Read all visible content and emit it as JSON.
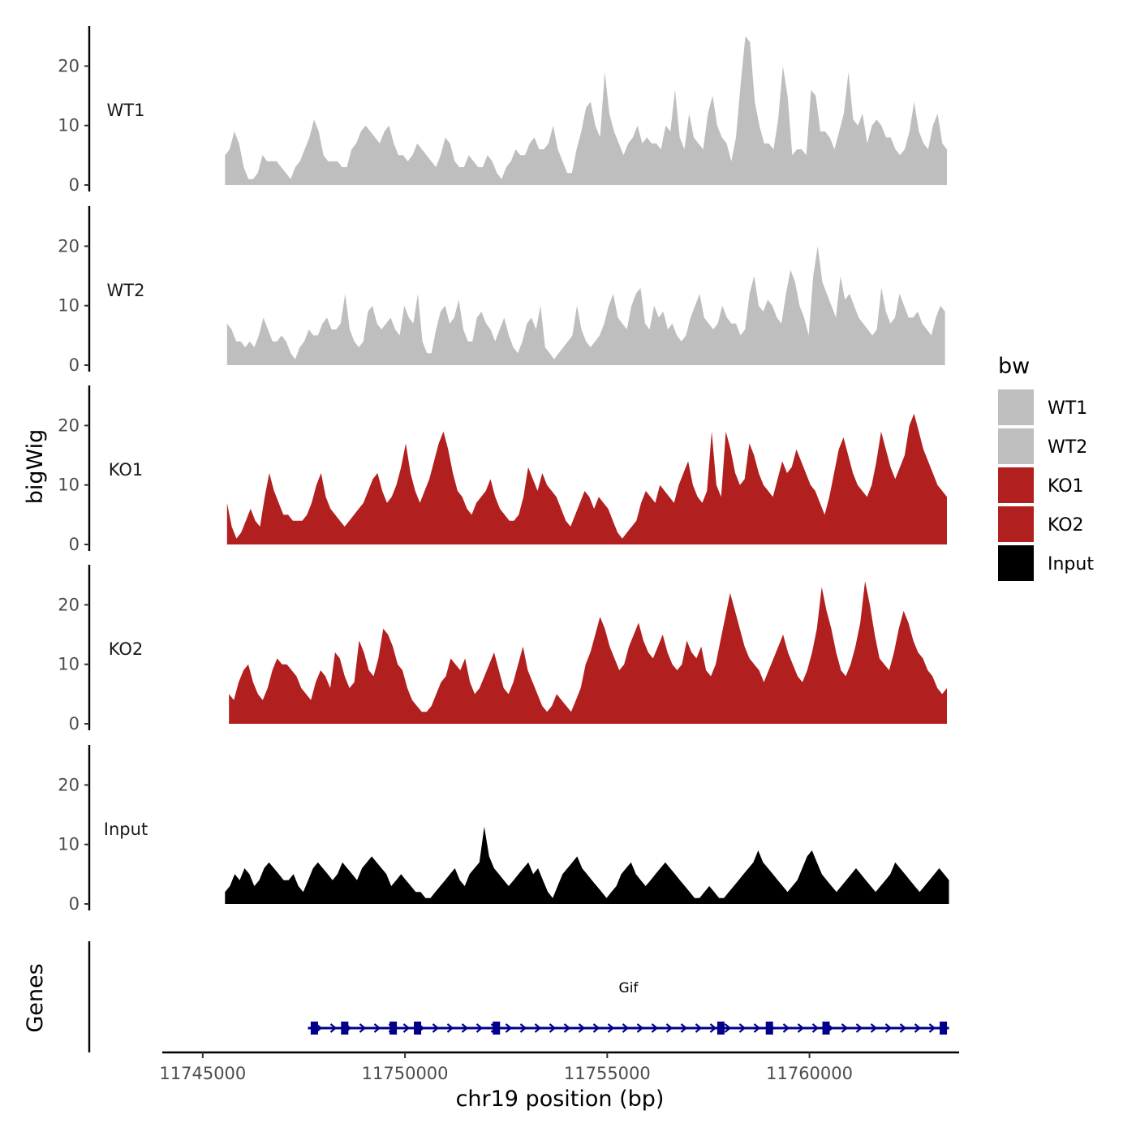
{
  "chart_data": {
    "type": "area",
    "chromosome": "chr19",
    "y_axis_title": "bigWig",
    "x_axis_title": "chr19 position (bp)",
    "y_ticks": [
      "0",
      "10",
      "20"
    ],
    "ylim": [
      0,
      27
    ],
    "x_ticks": [
      "11745000",
      "11750000",
      "11755000",
      "11760000"
    ],
    "xlim": [
      11744000,
      11763700
    ],
    "tracks": [
      {
        "name": "WT1",
        "color": "#bebebe",
        "x_start": 11745550,
        "x_end": 11763400,
        "values": [
          5,
          6,
          9,
          7,
          3,
          1,
          1,
          2,
          5,
          4,
          4,
          4,
          3,
          2,
          1,
          3,
          4,
          6,
          8,
          11,
          9,
          5,
          4,
          4,
          4,
          3,
          3,
          6,
          7,
          9,
          10,
          9,
          8,
          7,
          9,
          10,
          7,
          5,
          5,
          4,
          5,
          7,
          6,
          5,
          4,
          3,
          5,
          8,
          7,
          4,
          3,
          3,
          5,
          4,
          3,
          3,
          5,
          4,
          2,
          1,
          3,
          4,
          6,
          5,
          5,
          7,
          8,
          6,
          6,
          7,
          10,
          6,
          4,
          2,
          2,
          6,
          9,
          13,
          14,
          10,
          8,
          19,
          12,
          9,
          7,
          5,
          7,
          8,
          10,
          7,
          8,
          7,
          7,
          6,
          10,
          9,
          16,
          8,
          6,
          12,
          8,
          7,
          6,
          12,
          15,
          10,
          8,
          7,
          4,
          8,
          17,
          25,
          24,
          14,
          10,
          7,
          7,
          6,
          11,
          20,
          15,
          5,
          6,
          6,
          5,
          16,
          15,
          9,
          9,
          8,
          6,
          9,
          12,
          19,
          11,
          10,
          12,
          7,
          10,
          11,
          10,
          8,
          8,
          6,
          5,
          6,
          9,
          14,
          9,
          7,
          6,
          10,
          12,
          7,
          6
        ]
      },
      {
        "name": "WT2",
        "color": "#bebebe",
        "x_start": 11745600,
        "x_end": 11763350,
        "values": [
          7,
          6,
          4,
          4,
          3,
          4,
          3,
          5,
          8,
          6,
          4,
          4,
          5,
          4,
          2,
          1,
          3,
          4,
          6,
          5,
          5,
          7,
          8,
          6,
          6,
          7,
          12,
          6,
          4,
          3,
          4,
          9,
          10,
          7,
          6,
          7,
          8,
          6,
          5,
          10,
          8,
          7,
          12,
          4,
          2,
          2,
          6,
          9,
          10,
          7,
          8,
          11,
          6,
          4,
          4,
          8,
          9,
          7,
          6,
          4,
          6,
          8,
          5,
          3,
          2,
          4,
          7,
          8,
          6,
          10,
          3,
          2,
          1,
          2,
          3,
          4,
          5,
          10,
          6,
          4,
          3,
          4,
          5,
          7,
          10,
          12,
          8,
          7,
          6,
          10,
          12,
          13,
          7,
          6,
          10,
          8,
          9,
          6,
          7,
          5,
          4,
          5,
          8,
          10,
          12,
          8,
          7,
          6,
          7,
          10,
          8,
          7,
          7,
          5,
          6,
          12,
          15,
          10,
          9,
          11,
          10,
          8,
          7,
          12,
          16,
          14,
          10,
          8,
          5,
          15,
          20,
          14,
          12,
          10,
          8,
          15,
          11,
          12,
          10,
          8,
          7,
          6,
          5,
          6,
          13,
          9,
          7,
          8,
          12,
          10,
          8,
          8,
          9,
          7,
          6,
          5,
          8,
          10,
          9
        ]
      },
      {
        "name": "KO1",
        "color": "#b21f1f",
        "x_start": 11745600,
        "x_end": 11763400,
        "values": [
          7,
          3,
          1,
          2,
          4,
          6,
          4,
          3,
          8,
          12,
          9,
          7,
          5,
          5,
          4,
          4,
          4,
          5,
          7,
          10,
          12,
          8,
          6,
          5,
          4,
          3,
          4,
          5,
          6,
          7,
          9,
          11,
          12,
          9,
          7,
          8,
          10,
          13,
          17,
          12,
          9,
          7,
          9,
          11,
          14,
          17,
          19,
          16,
          12,
          9,
          8,
          6,
          5,
          7,
          8,
          9,
          11,
          8,
          6,
          5,
          4,
          4,
          5,
          8,
          13,
          11,
          9,
          12,
          10,
          9,
          8,
          6,
          4,
          3,
          5,
          7,
          9,
          8,
          6,
          8,
          7,
          6,
          4,
          2,
          1,
          2,
          3,
          4,
          7,
          9,
          8,
          7,
          10,
          9,
          8,
          7,
          10,
          12,
          14,
          10,
          8,
          7,
          9,
          19,
          10,
          8,
          19,
          16,
          12,
          10,
          11,
          17,
          15,
          12,
          10,
          9,
          8,
          11,
          14,
          12,
          13,
          16,
          14,
          12,
          10,
          9,
          7,
          5,
          8,
          12,
          16,
          18,
          15,
          12,
          10,
          9,
          8,
          10,
          14,
          19,
          16,
          13,
          11,
          13,
          15,
          20,
          22,
          19,
          16,
          14,
          12,
          10,
          9,
          8
        ]
      },
      {
        "name": "KO2",
        "color": "#b21f1f",
        "x_start": 11745650,
        "x_end": 11763400,
        "values": [
          5,
          4,
          7,
          9,
          10,
          7,
          5,
          4,
          6,
          9,
          11,
          10,
          10,
          9,
          8,
          6,
          5,
          4,
          7,
          9,
          8,
          6,
          12,
          11,
          8,
          6,
          7,
          14,
          12,
          9,
          8,
          11,
          16,
          15,
          13,
          10,
          9,
          6,
          4,
          3,
          2,
          2,
          3,
          5,
          7,
          8,
          11,
          10,
          9,
          11,
          7,
          5,
          6,
          8,
          10,
          12,
          9,
          6,
          5,
          7,
          10,
          13,
          9,
          7,
          5,
          3,
          2,
          3,
          5,
          4,
          3,
          2,
          4,
          6,
          10,
          12,
          15,
          18,
          16,
          13,
          11,
          9,
          10,
          13,
          15,
          17,
          14,
          12,
          11,
          13,
          15,
          12,
          10,
          9,
          10,
          14,
          12,
          11,
          13,
          9,
          8,
          10,
          14,
          18,
          22,
          19,
          16,
          13,
          11,
          10,
          9,
          7,
          9,
          11,
          13,
          15,
          12,
          10,
          8,
          7,
          9,
          12,
          16,
          23,
          19,
          16,
          12,
          9,
          8,
          10,
          13,
          17,
          24,
          20,
          15,
          11,
          10,
          9,
          12,
          16,
          19,
          17,
          14,
          12,
          11,
          9,
          8,
          6,
          5,
          6
        ]
      },
      {
        "name": "Input",
        "color": "#000000",
        "x_start": 11745550,
        "x_end": 11763450,
        "values": [
          2,
          3,
          5,
          4,
          6,
          5,
          3,
          4,
          6,
          7,
          6,
          5,
          4,
          4,
          5,
          3,
          2,
          4,
          6,
          7,
          6,
          5,
          4,
          5,
          7,
          6,
          5,
          4,
          6,
          7,
          8,
          7,
          6,
          5,
          3,
          4,
          5,
          4,
          3,
          2,
          2,
          1,
          1,
          2,
          3,
          4,
          5,
          6,
          4,
          3,
          5,
          6,
          7,
          13,
          8,
          6,
          5,
          4,
          3,
          4,
          5,
          6,
          7,
          5,
          6,
          4,
          2,
          1,
          3,
          5,
          6,
          7,
          8,
          6,
          5,
          4,
          3,
          2,
          1,
          2,
          3,
          5,
          6,
          7,
          5,
          4,
          3,
          4,
          5,
          6,
          7,
          6,
          5,
          4,
          3,
          2,
          1,
          1,
          2,
          3,
          2,
          1,
          1,
          2,
          3,
          4,
          5,
          6,
          7,
          9,
          7,
          6,
          5,
          4,
          3,
          2,
          3,
          4,
          6,
          8,
          9,
          7,
          5,
          4,
          3,
          2,
          3,
          4,
          5,
          6,
          5,
          4,
          3,
          2,
          3,
          4,
          5,
          7,
          6,
          5,
          4,
          3,
          2,
          3,
          4,
          5,
          6,
          5,
          4
        ]
      }
    ],
    "genes_track": {
      "label": "Genes",
      "color": "#00008b",
      "genes": [
        {
          "name": "Gif",
          "start": 11747600,
          "end": 11763450,
          "strand": "+",
          "exons": [
            11747750,
            11748500,
            11749700,
            11750300,
            11752250,
            11757800,
            11759000,
            11760400,
            11763300
          ]
        }
      ]
    },
    "legend": {
      "title": "bw",
      "entries": [
        {
          "label": "WT1",
          "color": "#bebebe"
        },
        {
          "label": "WT2",
          "color": "#bebebe"
        },
        {
          "label": "KO1",
          "color": "#b21f1f"
        },
        {
          "label": "KO2",
          "color": "#b21f1f"
        },
        {
          "label": "Input",
          "color": "#000000"
        }
      ]
    }
  }
}
